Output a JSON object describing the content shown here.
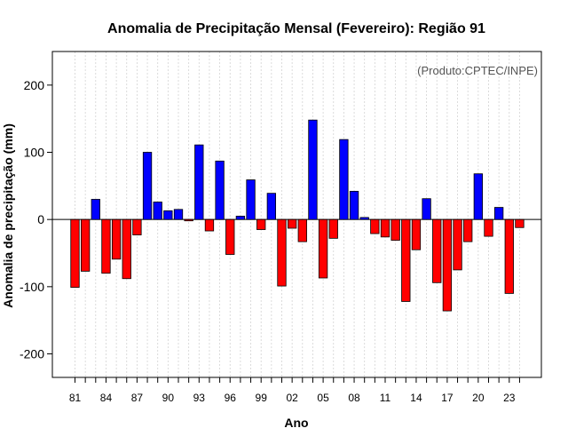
{
  "chart_data": {
    "type": "bar",
    "title": "Anomalia de Precipitação Mensal (Fevereiro): Região 91",
    "xlabel": "Ano",
    "ylabel": "Anomalia de precipitação (mm)",
    "annotation": "(Produto:CPTEC/INPE)",
    "ylim": [
      -235,
      250
    ],
    "yticks": [
      -200,
      -100,
      0,
      100,
      200
    ],
    "years": [
      1981,
      1982,
      1983,
      1984,
      1985,
      1986,
      1987,
      1988,
      1989,
      1990,
      1991,
      1992,
      1993,
      1994,
      1995,
      1996,
      1997,
      1998,
      1999,
      2000,
      2001,
      2002,
      2003,
      2004,
      2005,
      2006,
      2007,
      2008,
      2009,
      2010,
      2011,
      2012,
      2013,
      2014,
      2015,
      2016,
      2017,
      2018,
      2019,
      2020,
      2021,
      2022,
      2023,
      2024
    ],
    "values": [
      -101,
      -77,
      30,
      -80,
      -59,
      -88,
      -23,
      100,
      26,
      13,
      15,
      -2,
      111,
      -17,
      87,
      -52,
      5,
      59,
      -15,
      39,
      -99,
      -13,
      -33,
      148,
      -87,
      -28,
      119,
      42,
      3,
      -21,
      -26,
      -31,
      -122,
      -45,
      31,
      -94,
      -136,
      -75,
      -33,
      68,
      -25,
      18,
      -110,
      -12
    ],
    "xtick_labels": [
      {
        "year": 1981,
        "label": "81"
      },
      {
        "year": 1984,
        "label": "84"
      },
      {
        "year": 1987,
        "label": "87"
      },
      {
        "year": 1990,
        "label": "90"
      },
      {
        "year": 1993,
        "label": "93"
      },
      {
        "year": 1996,
        "label": "96"
      },
      {
        "year": 1999,
        "label": "99"
      },
      {
        "year": 2002,
        "label": "02"
      },
      {
        "year": 2005,
        "label": "05"
      },
      {
        "year": 2008,
        "label": "08"
      },
      {
        "year": 2011,
        "label": "11"
      },
      {
        "year": 2014,
        "label": "14"
      },
      {
        "year": 2017,
        "label": "17"
      },
      {
        "year": 2020,
        "label": "20"
      },
      {
        "year": 2023,
        "label": "23"
      }
    ],
    "colors": {
      "positive": "#0000ff",
      "negative": "#ff0000",
      "grid": "#d3d3d3"
    }
  }
}
